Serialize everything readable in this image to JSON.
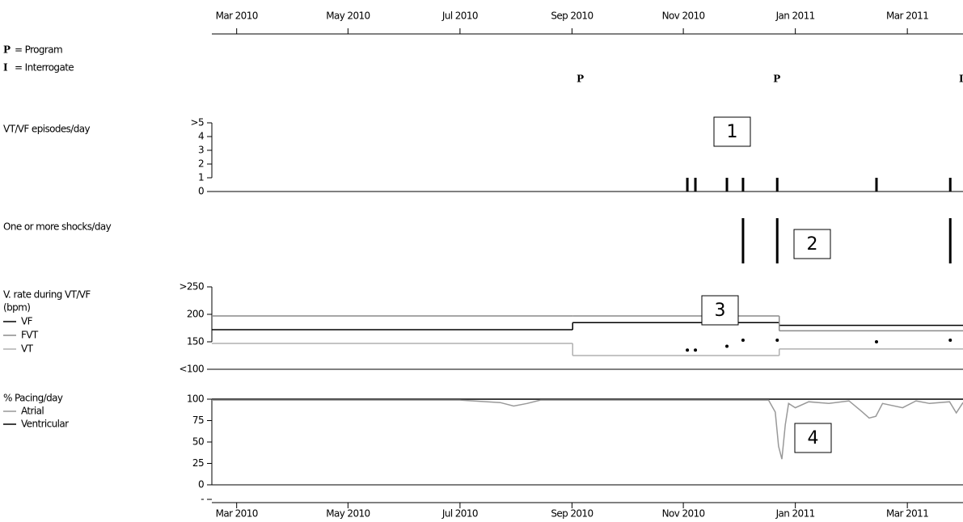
{
  "chart_data": [
    {
      "type": "timeline",
      "xlim": [
        2010.13,
        2011.25
      ],
      "xticks": [
        {
          "value": 2010.167,
          "label": "Mar 2010"
        },
        {
          "value": 2010.333,
          "label": "May 2010"
        },
        {
          "value": 2010.5,
          "label": "Jul 2010"
        },
        {
          "value": 2010.667,
          "label": "Sep 2010"
        },
        {
          "value": 2010.833,
          "label": "Nov 2010"
        },
        {
          "value": 2011.0,
          "label": "Jan 2011"
        },
        {
          "value": 2011.167,
          "label": "Mar 2011"
        }
      ],
      "legend": [
        {
          "symbol": "P",
          "label": "= Program"
        },
        {
          "symbol": "I",
          "label": "= Interrogate"
        }
      ],
      "events": {
        "symbols": [
          "P",
          "P",
          "I"
        ],
        "x": [
          2010.679,
          2010.972,
          2011.247
        ]
      }
    },
    {
      "type": "bar",
      "title": "VT/VF episodes/day",
      "annotation": "1",
      "xlim": [
        2010.13,
        2011.25
      ],
      "x": [
        2010.839,
        2010.851,
        2010.898,
        2010.922,
        2010.973,
        2011.121,
        2011.231
      ],
      "values": [
        1,
        1,
        1,
        1,
        1,
        1,
        1
      ],
      "ylim": [
        0,
        5
      ],
      "yticks": [
        0,
        1,
        2,
        3,
        4,
        {
          "value": 5,
          "label": ">5"
        }
      ]
    },
    {
      "type": "event-bar",
      "title": "One or more shocks/day",
      "annotation": "2",
      "xlim": [
        2010.13,
        2011.25
      ],
      "x": [
        2010.922,
        2010.973,
        2011.231
      ]
    },
    {
      "type": "step-line",
      "title": [
        "V. rate during VT/VF",
        "(bpm)"
      ],
      "annotation": "3",
      "xlim": [
        2010.13,
        2011.25
      ],
      "ylim": [
        100,
        250
      ],
      "yticks": [
        {
          "value": 100,
          "label": "<100"
        },
        150,
        200,
        {
          "value": 250,
          "label": ">250"
        }
      ],
      "series": [
        {
          "name": "VF",
          "color": "#000000",
          "x": [
            2010.13,
            2010.668,
            2010.976
          ],
          "values": [
            172,
            185,
            180
          ]
        },
        {
          "name": "FVT",
          "color": "#8a8a8a",
          "x": [
            2010.13,
            2010.668,
            2010.976
          ],
          "values": [
            197,
            197,
            170
          ]
        },
        {
          "name": "VT",
          "color": "#b0b0b0",
          "x": [
            2010.13,
            2010.668,
            2010.976
          ],
          "values": [
            147,
            125,
            137
          ]
        }
      ],
      "points": {
        "color": "#000000",
        "x": [
          2010.839,
          2010.851,
          2010.898,
          2010.922,
          2010.973,
          2011.121,
          2011.231
        ],
        "values": [
          135,
          135,
          142,
          153,
          153,
          150,
          153
        ]
      }
    },
    {
      "type": "line",
      "title": "% Pacing/day",
      "annotation": "4",
      "xlim": [
        2010.13,
        2011.25
      ],
      "xticks": [
        {
          "value": 2010.167,
          "label": "Mar 2010"
        },
        {
          "value": 2010.333,
          "label": "May 2010"
        },
        {
          "value": 2010.5,
          "label": "Jul 2010"
        },
        {
          "value": 2010.667,
          "label": "Sep 2010"
        },
        {
          "value": 2010.833,
          "label": "Nov 2010"
        },
        {
          "value": 2011.0,
          "label": "Jan 2011"
        },
        {
          "value": 2011.167,
          "label": "Mar 2011"
        }
      ],
      "ylim": [
        -17,
        100
      ],
      "yticks": [
        {
          "value": -17,
          "label": "-"
        },
        0,
        25,
        50,
        75,
        100
      ],
      "series": [
        {
          "name": "Atrial",
          "color": "#999999",
          "x": [
            2010.13,
            2010.3,
            2010.5,
            2010.56,
            2010.58,
            2010.6,
            2010.62,
            2010.8,
            2010.96,
            2010.97,
            2010.975,
            2010.98,
            2010.985,
            2010.99,
            2011.0,
            2011.02,
            2011.05,
            2011.08,
            2011.1,
            2011.11,
            2011.12,
            2011.13,
            2011.16,
            2011.18,
            2011.2,
            2011.23,
            2011.24,
            2011.25
          ],
          "values": [
            99,
            99,
            99,
            96,
            92,
            95,
            99,
            99,
            99,
            85,
            45,
            30,
            70,
            95,
            90,
            97,
            95,
            98,
            85,
            78,
            80,
            95,
            90,
            98,
            95,
            97,
            84,
            96
          ]
        },
        {
          "name": "Ventricular",
          "color": "#000000",
          "x": [
            2010.13,
            2011.25
          ],
          "values": [
            100,
            100
          ]
        }
      ]
    }
  ]
}
